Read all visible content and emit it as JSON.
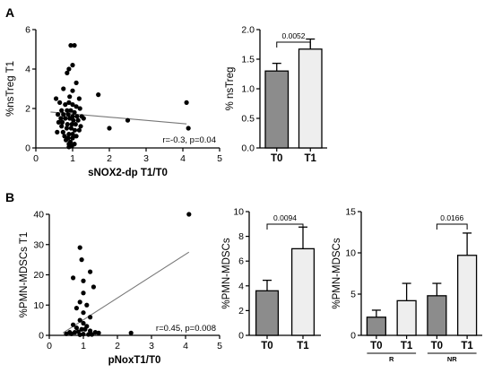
{
  "panel_letters": [
    "A",
    "B"
  ],
  "chart_data": [
    {
      "id": "scatter-a",
      "type": "scatter",
      "xlabel": "sNOX2-dp T1/T0",
      "ylabel": "%nsTreg T1",
      "xlim": [
        0,
        5
      ],
      "ylim": [
        0,
        6
      ],
      "xticks": [
        0,
        1,
        2,
        3,
        4,
        5
      ],
      "yticks": [
        0,
        2,
        4,
        6
      ],
      "annotation": "r=-0.3, p=0.04",
      "fit_line": {
        "x": [
          0.4,
          4.1
        ],
        "y": [
          1.82,
          1.22
        ]
      },
      "points": {
        "x": [
          0.95,
          1.05,
          1.0,
          0.9,
          0.85,
          1.1,
          0.75,
          1.0,
          0.92,
          1.18,
          0.55,
          0.65,
          0.8,
          0.9,
          1.0,
          1.1,
          1.2,
          0.7,
          0.85,
          0.95,
          1.05,
          0.6,
          0.75,
          0.88,
          1.0,
          1.12,
          1.25,
          0.68,
          0.8,
          0.92,
          1.02,
          1.15,
          0.62,
          0.72,
          0.86,
          0.98,
          1.08,
          1.22,
          0.7,
          0.84,
          0.96,
          1.06,
          1.18,
          0.58,
          0.74,
          0.9,
          1.0,
          1.1,
          0.78,
          0.88,
          1.0,
          0.82,
          0.94,
          0.9,
          1.05,
          0.98,
          0.9,
          1.3,
          1.7,
          2.0,
          2.5,
          4.1,
          4.15
        ],
        "y": [
          5.2,
          5.2,
          4.2,
          4.0,
          3.8,
          3.3,
          3.0,
          2.9,
          2.6,
          2.5,
          2.5,
          2.3,
          2.2,
          2.3,
          2.2,
          2.1,
          2.0,
          1.9,
          1.9,
          1.9,
          1.8,
          1.7,
          1.7,
          1.7,
          1.6,
          1.6,
          1.6,
          1.5,
          1.5,
          1.5,
          1.4,
          1.4,
          1.3,
          1.3,
          1.2,
          1.2,
          1.2,
          1.1,
          1.1,
          1.0,
          1.0,
          0.9,
          0.9,
          0.8,
          0.8,
          0.7,
          0.7,
          0.6,
          0.6,
          0.5,
          0.5,
          0.4,
          0.3,
          0.2,
          0.2,
          0.1,
          0.05,
          1.5,
          2.7,
          1.0,
          1.4,
          2.3,
          1.0
        ]
      }
    },
    {
      "id": "bar-a",
      "type": "bar",
      "ylabel": "% nsTreg",
      "ylim": [
        0,
        2.0
      ],
      "yticks": [
        0.0,
        0.5,
        1.0,
        1.5,
        2.0
      ],
      "categories": [
        "T0",
        "T1"
      ],
      "values": [
        1.3,
        1.67
      ],
      "errors": [
        0.13,
        0.17
      ],
      "colors": [
        "#8c8c8c",
        "#eeeeee"
      ],
      "comparisons": [
        {
          "from": 0,
          "to": 1,
          "label": "0.0052"
        }
      ]
    },
    {
      "id": "scatter-b",
      "type": "scatter",
      "xlabel": "pNoxT1/T0",
      "ylabel": "%PMN-MDSCs T1",
      "xlim": [
        0,
        5
      ],
      "ylim": [
        0,
        40
      ],
      "xticks": [
        0,
        1,
        2,
        3,
        4,
        5
      ],
      "yticks": [
        0,
        10,
        20,
        30,
        40
      ],
      "annotation": "r=0.45, p=0.008",
      "fit_line": {
        "x": [
          0.4,
          4.1
        ],
        "y": [
          0.8,
          27.5
        ]
      },
      "points": {
        "x": [
          0.9,
          0.95,
          1.2,
          0.7,
          1.0,
          1.3,
          1.0,
          0.9,
          1.1,
          0.8,
          1.0,
          1.2,
          0.9,
          1.0,
          0.7,
          1.1,
          0.8,
          0.95,
          1.05,
          1.2,
          0.85,
          0.6,
          0.75,
          1.35,
          1.45,
          0.5,
          0.65,
          1.0,
          1.15,
          1.25,
          0.9,
          2.4,
          4.1
        ],
        "y": [
          29.0,
          25.0,
          21.0,
          19.0,
          18.0,
          16.0,
          14.0,
          11.0,
          10.0,
          9.0,
          7.5,
          6.0,
          5.0,
          4.0,
          3.5,
          3.0,
          2.5,
          2.0,
          2.0,
          1.5,
          1.2,
          1.0,
          1.0,
          1.0,
          0.8,
          0.5,
          0.5,
          0.4,
          0.3,
          0.3,
          0.2,
          0.8,
          40.0
        ]
      }
    },
    {
      "id": "bar-b1",
      "type": "bar",
      "ylabel": "%PMN-MDSCs",
      "ylim": [
        0,
        10
      ],
      "yticks": [
        0,
        2,
        4,
        6,
        8,
        10
      ],
      "categories": [
        "T0",
        "T1"
      ],
      "values": [
        3.6,
        7.0
      ],
      "errors": [
        0.85,
        1.75
      ],
      "colors": [
        "#8c8c8c",
        "#eeeeee"
      ],
      "comparisons": [
        {
          "from": 0,
          "to": 1,
          "label": "0.0094"
        }
      ]
    },
    {
      "id": "bar-b2",
      "type": "bar",
      "ylabel": "%PMN-MDSCs",
      "ylim": [
        0,
        15
      ],
      "yticks": [
        0,
        5,
        10,
        15
      ],
      "categories": [
        "T0",
        "T1",
        "T0",
        "T1"
      ],
      "values": [
        2.2,
        4.2,
        4.8,
        9.7
      ],
      "errors": [
        0.85,
        2.1,
        1.5,
        2.7
      ],
      "colors": [
        "#8c8c8c",
        "#eeeeee",
        "#8c8c8c",
        "#eeeeee"
      ],
      "groups": [
        {
          "label": "R",
          "from": 0,
          "to": 1
        },
        {
          "label": "NR",
          "from": 2,
          "to": 3
        }
      ],
      "comparisons": [
        {
          "from": 2,
          "to": 3,
          "label": "0.0166"
        }
      ]
    }
  ]
}
